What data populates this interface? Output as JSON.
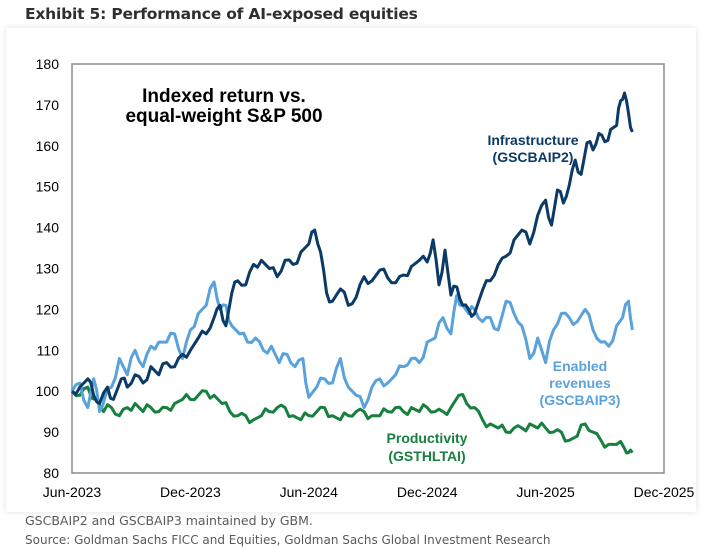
{
  "page": {
    "title": "Exhibit 5: Performance of AI-exposed equities",
    "footnotes": [
      "GSCBAIP2 and GSCBAIP3 maintained by GBM.",
      "Source: Goldman Sachs FICC and Equities, Goldman Sachs Global Investment Research"
    ]
  },
  "chart_data": {
    "type": "line",
    "title": "Indexed return vs. equal-weight S&P 500",
    "title_lines": [
      "Indexed return vs.",
      "equal-weight S&P 500"
    ],
    "xlabel": "",
    "ylabel": "",
    "x_unit": "months since Jun-2023",
    "xlim": [
      0,
      30
    ],
    "ylim": [
      80,
      180
    ],
    "yticks": [
      80,
      90,
      100,
      110,
      120,
      130,
      140,
      150,
      160,
      170,
      180
    ],
    "xticks": [
      {
        "value": 0,
        "label": "Jun-2023"
      },
      {
        "value": 6,
        "label": "Dec-2023"
      },
      {
        "value": 12,
        "label": "Jun-2024"
      },
      {
        "value": 18,
        "label": "Dec-2024"
      },
      {
        "value": 24,
        "label": "Jun-2025"
      },
      {
        "value": 30,
        "label": "Dec-2025"
      }
    ],
    "grid": false,
    "legend": "inline labels",
    "series": [
      {
        "name": "Infrastructure (GSCBAIP2)",
        "label_lines": [
          "Infrastructure",
          "(GSCBAIP2)"
        ],
        "color": "#0b3a66",
        "x": [
          0,
          0.4,
          0.8,
          1.1,
          1.4,
          1.8,
          2.1,
          2.5,
          2.8,
          3.2,
          3.6,
          4.0,
          4.4,
          4.8,
          5.2,
          5.6,
          6.0,
          6.4,
          6.8,
          7.2,
          7.5,
          7.8,
          8.1,
          8.4,
          8.8,
          9.2,
          9.6,
          10.0,
          10.4,
          10.8,
          11.2,
          11.6,
          12.0,
          12.3,
          12.6,
          12.9,
          13.2,
          13.6,
          14.0,
          14.4,
          14.8,
          15.2,
          15.6,
          16.0,
          16.4,
          16.8,
          17.2,
          17.6,
          18.0,
          18.3,
          18.6,
          18.9,
          19.2,
          19.5,
          19.8,
          20.1,
          20.4,
          20.8,
          21.2,
          21.6,
          22.0,
          22.4,
          22.8,
          23.2,
          23.6,
          24.0,
          24.3,
          24.6,
          24.9,
          25.2,
          25.5,
          25.8,
          26.1,
          26.4,
          26.7,
          27.0,
          27.3,
          27.6,
          27.8,
          28.0,
          28.2,
          28.4
        ],
        "values": [
          100,
          101,
          103,
          99,
          97,
          101,
          98,
          103,
          101,
          104,
          102,
          106,
          104,
          107,
          106,
          109,
          110,
          113,
          114,
          118,
          121,
          116,
          124,
          127,
          126,
          131,
          132,
          130,
          128,
          132,
          131,
          134,
          136,
          139.4,
          134,
          124,
          122,
          125,
          121,
          123,
          128,
          127,
          129.6,
          127.7,
          126.5,
          128.4,
          130.5,
          132,
          131.6,
          137,
          126,
          134.5,
          123.5,
          125.5,
          121,
          120,
          119,
          124.7,
          127,
          130.9,
          133,
          137,
          139.4,
          136,
          143,
          146.7,
          140.6,
          149.2,
          146,
          150.4,
          156.5,
          153,
          160.7,
          159,
          163,
          161,
          164,
          165,
          171,
          172.9,
          168,
          163.4
        ]
      },
      {
        "name": "Enabled revenues (GSCBAIP3)",
        "label_lines": [
          "Enabled",
          "revenues",
          "(GSCBAIP3)"
        ],
        "color": "#5aa2dc",
        "x": [
          0,
          0.4,
          0.8,
          1.1,
          1.4,
          1.7,
          2.0,
          2.4,
          2.8,
          3.2,
          3.6,
          4.0,
          4.4,
          4.8,
          5.2,
          5.6,
          6.0,
          6.4,
          6.8,
          7.2,
          7.5,
          7.8,
          8.1,
          8.5,
          8.9,
          9.3,
          9.7,
          10.1,
          10.5,
          10.9,
          11.3,
          11.7,
          12.0,
          12.4,
          12.8,
          13.2,
          13.6,
          14.0,
          14.4,
          14.8,
          15.2,
          15.6,
          16.0,
          16.4,
          16.8,
          17.2,
          17.6,
          18.0,
          18.4,
          18.8,
          19.2,
          19.5,
          19.8,
          20.1,
          20.4,
          20.8,
          21.2,
          21.6,
          22.0,
          22.4,
          22.8,
          23.2,
          23.6,
          24.0,
          24.4,
          24.8,
          25.2,
          25.6,
          26.0,
          26.4,
          26.8,
          27.2,
          27.6,
          27.9,
          28.2,
          28.4
        ],
        "values": [
          100,
          102,
          96,
          103,
          95,
          99,
          101,
          108,
          104,
          110,
          106,
          111,
          112,
          112,
          114,
          108,
          115,
          119,
          121,
          126.7,
          120,
          121,
          116,
          114,
          112,
          113,
          110,
          111,
          107,
          109,
          106,
          108,
          98.5,
          101,
          103,
          102,
          108,
          101,
          99,
          96,
          101,
          103,
          102,
          104,
          106,
          108,
          107,
          112,
          113,
          118,
          114,
          123.5,
          121,
          119,
          120,
          117,
          118,
          115,
          122,
          119,
          116,
          108,
          113,
          107,
          115,
          119,
          118,
          117,
          120,
          115,
          112,
          111,
          116,
          118,
          122,
          115
        ]
      },
      {
        "name": "Productivity (GSTHLTAI)",
        "label_lines": [
          "Productivity",
          "(GSTHLTAI)"
        ],
        "color": "#17803f",
        "x": [
          0,
          0.4,
          0.8,
          1.2,
          1.6,
          2.0,
          2.4,
          2.8,
          3.2,
          3.6,
          4.0,
          4.4,
          4.8,
          5.2,
          5.6,
          6.0,
          6.4,
          6.8,
          7.2,
          7.6,
          8.0,
          8.4,
          8.8,
          9.2,
          9.6,
          10.0,
          10.4,
          10.8,
          11.2,
          11.6,
          12.0,
          12.4,
          12.8,
          13.2,
          13.6,
          14.0,
          14.4,
          14.8,
          15.2,
          15.6,
          16.0,
          16.4,
          16.8,
          17.2,
          17.6,
          18.0,
          18.4,
          18.8,
          19.2,
          19.6,
          20.0,
          20.4,
          20.8,
          21.2,
          21.6,
          22.0,
          22.4,
          22.8,
          23.2,
          23.6,
          24.0,
          24.4,
          24.8,
          25.2,
          25.6,
          26.0,
          26.4,
          26.8,
          27.2,
          27.6,
          28.0,
          28.2,
          28.4
        ],
        "values": [
          100,
          99,
          101,
          98,
          95,
          96,
          94,
          96,
          97,
          95,
          96,
          95,
          96,
          97,
          98,
          98,
          99,
          100,
          99,
          97,
          95,
          94,
          94,
          93,
          94,
          95,
          96,
          96,
          94,
          93,
          94,
          95,
          96,
          94,
          93,
          94,
          95,
          95,
          94,
          94,
          95,
          96,
          95,
          96,
          95,
          96,
          95,
          95,
          96,
          99,
          97,
          96,
          93,
          92,
          91,
          90,
          91,
          91,
          92,
          91,
          91,
          90,
          90,
          88,
          89,
          92,
          90,
          88,
          87,
          87,
          86,
          85,
          85
        ]
      }
    ]
  }
}
